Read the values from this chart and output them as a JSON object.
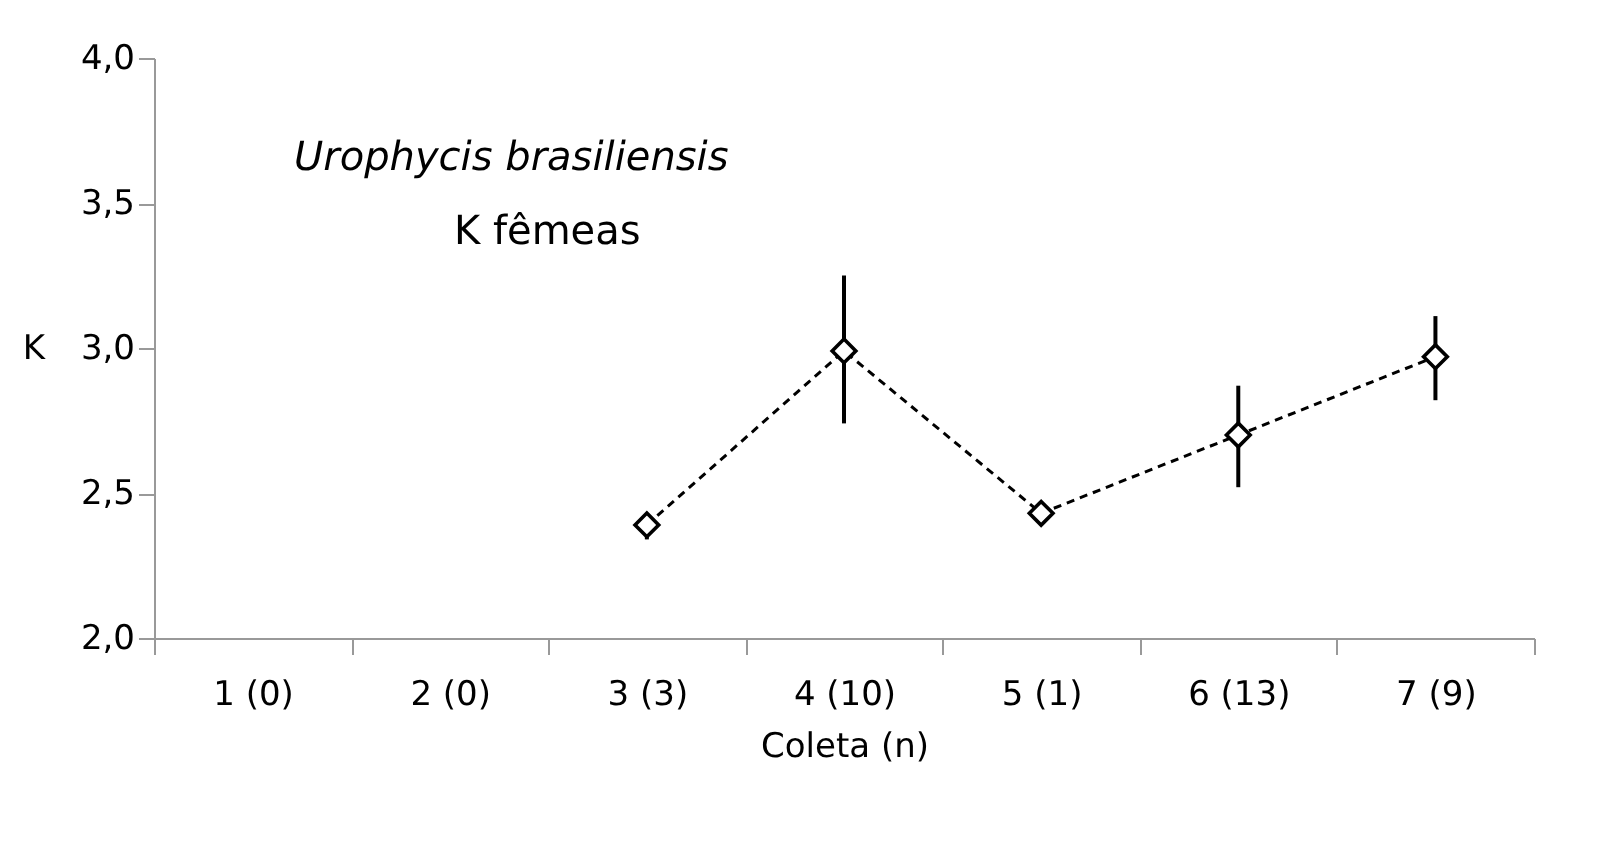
{
  "chart_data": {
    "type": "line",
    "annotations": [
      "Urophycis brasiliensis",
      "K fêmeas"
    ],
    "xlabel": "Coleta (n)",
    "ylabel": "K",
    "categories": [
      "1 (0)",
      "2 (0)",
      "3 (3)",
      "4 (10)",
      "5 (1)",
      "6 (13)",
      "7 (9)"
    ],
    "series": [
      {
        "color": "#000000",
        "values": [
          null,
          null,
          2.39,
          2.99,
          2.43,
          2.7,
          2.97
        ],
        "errors": [
          null,
          null,
          [
            2.34,
            2.39
          ],
          [
            2.74,
            3.25
          ],
          null,
          [
            2.52,
            2.87
          ],
          [
            2.82,
            3.11
          ]
        ]
      }
    ],
    "ylim": [
      2.0,
      4.0
    ],
    "yticks": [
      {
        "value": 2.0,
        "label": "2,0"
      },
      {
        "value": 2.5,
        "label": "2,5"
      },
      {
        "value": 3.0,
        "label": "3,0"
      },
      {
        "value": 3.5,
        "label": "3,5"
      },
      {
        "value": 4.0,
        "label": "4,0"
      }
    ],
    "grid": false,
    "marker": "diamond",
    "line_style": "dashed"
  }
}
